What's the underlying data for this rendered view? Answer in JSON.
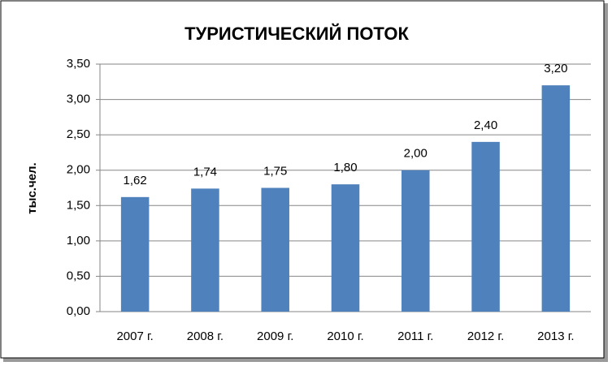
{
  "chart_data": {
    "type": "bar",
    "title": "ТУРИСТИЧЕСКИЙ ПОТОК",
    "y_label": "тыс.чел.",
    "categories": [
      "2007 г.",
      "2008 г.",
      "2009 г.",
      "2010 г.",
      "2011 г.",
      "2012 г.",
      "2013 г."
    ],
    "values": [
      1.62,
      1.74,
      1.75,
      1.8,
      2.0,
      2.4,
      3.2
    ],
    "value_labels": [
      "1,62",
      "1,74",
      "1,75",
      "1,80",
      "2,00",
      "2,40",
      "3,20"
    ],
    "color": "#4f81bd",
    "ylim": [
      0,
      3.5
    ],
    "yticks": [
      {
        "value": 0,
        "label": "0,00"
      },
      {
        "value": 0.5,
        "label": "0,50"
      },
      {
        "value": 1,
        "label": "1,00"
      },
      {
        "value": 1.5,
        "label": "1,50"
      },
      {
        "value": 2,
        "label": "2,00"
      },
      {
        "value": 2.5,
        "label": "2,50"
      },
      {
        "value": 3,
        "label": "3,00"
      },
      {
        "value": 3.5,
        "label": "3,50"
      }
    ],
    "grid": true
  }
}
